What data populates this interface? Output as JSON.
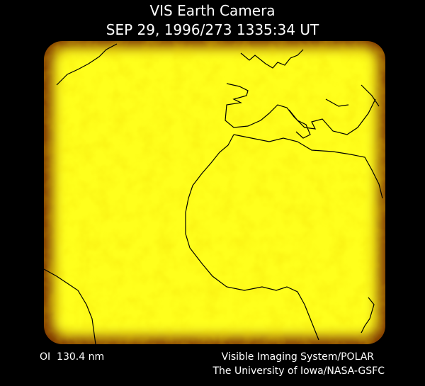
{
  "header": {
    "title": "VIS Earth Camera",
    "timestamp": "SEP 29, 1996/273 1335:34 UT"
  },
  "footer": {
    "wavelength": "OI  130.4 nm",
    "instrument": "Visible Imaging System/POLAR",
    "institution": "The University of Iowa/NASA-GSFC"
  }
}
